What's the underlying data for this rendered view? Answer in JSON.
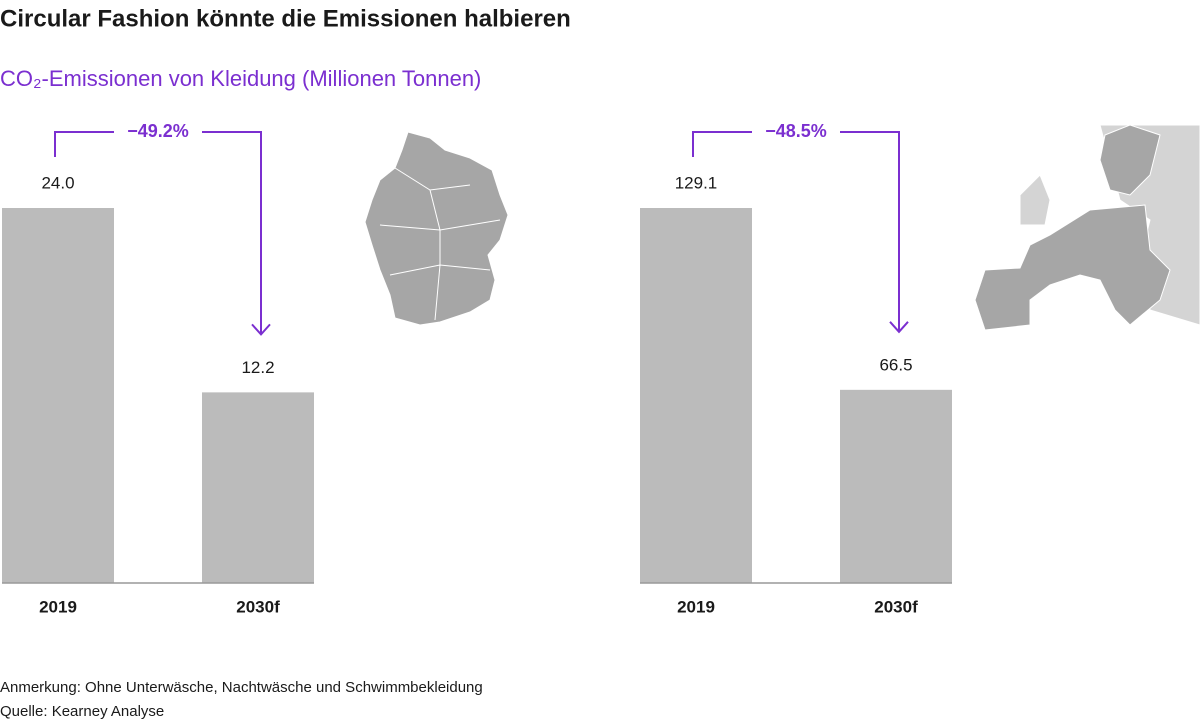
{
  "title": "Circular Fashion könnte die Emissionen halbieren",
  "subtitle": "CO₂-Emissionen von Kleidung (Millionen Tonnen)",
  "note": "Anmerkung: Ohne Unterwäsche, Nachtwäsche und Schwimmbekleidung",
  "source": "Quelle: Kearney Analyse",
  "chart_data": [
    {
      "type": "bar",
      "categories": [
        "2019",
        "2030f"
      ],
      "values": [
        24.0,
        12.2
      ],
      "value_labels": [
        "24.0",
        "12.2"
      ],
      "annotation": "−49.2%",
      "color": "#bbbbbb"
    },
    {
      "type": "bar",
      "categories": [
        "2019",
        "2030f"
      ],
      "values": [
        129.1,
        66.5
      ],
      "value_labels": [
        "129.1",
        "66.5"
      ],
      "annotation": "−48.5%",
      "color": "#bbbbbb"
    }
  ]
}
